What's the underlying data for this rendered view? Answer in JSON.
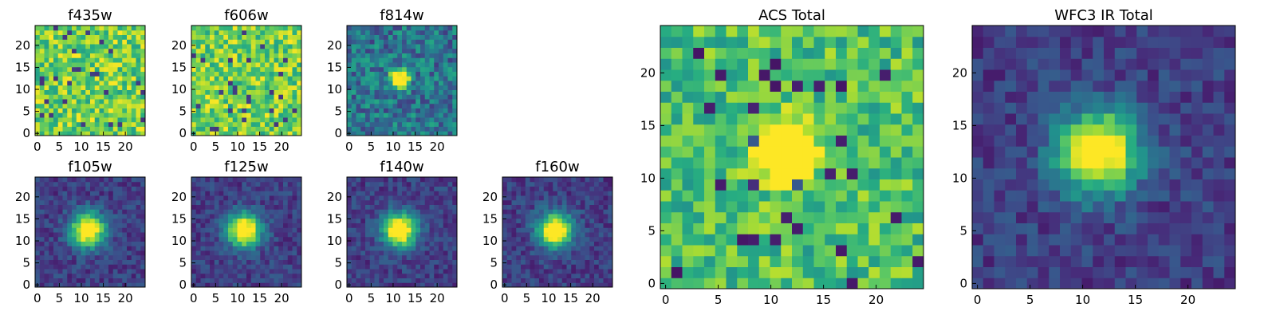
{
  "chart_data": [
    {
      "type": "heatmap",
      "title": "f435w",
      "colormap": "viridis",
      "xlim": [
        0,
        24
      ],
      "ylim": [
        0,
        24
      ],
      "xticks": [
        "0",
        "5",
        "10",
        "15",
        "20"
      ],
      "yticks": [
        "0",
        "5",
        "10",
        "15",
        "20"
      ],
      "grid_size": [
        24,
        24
      ],
      "source": null,
      "noise": "high-uniform"
    },
    {
      "type": "heatmap",
      "title": "f606w",
      "colormap": "viridis",
      "xlim": [
        0,
        24
      ],
      "ylim": [
        0,
        24
      ],
      "xticks": [
        "0",
        "5",
        "10",
        "15",
        "20"
      ],
      "yticks": [
        "0",
        "5",
        "10",
        "15",
        "20"
      ],
      "grid_size": [
        24,
        24
      ],
      "source": null,
      "noise": "high-uniform"
    },
    {
      "type": "heatmap",
      "title": "f814w",
      "colormap": "viridis",
      "xlim": [
        0,
        24
      ],
      "ylim": [
        0,
        24
      ],
      "xticks": [
        "0",
        "5",
        "10",
        "15",
        "20"
      ],
      "yticks": [
        "0",
        "5",
        "10",
        "15",
        "20"
      ],
      "grid_size": [
        24,
        24
      ],
      "source": {
        "x": 11.5,
        "y": 12.5,
        "peak": 1.0
      },
      "noise": "moderate"
    },
    {
      "type": "heatmap",
      "title": "f105w",
      "colormap": "viridis",
      "xlim": [
        0,
        24
      ],
      "ylim": [
        0,
        24
      ],
      "xticks": [
        "0",
        "5",
        "10",
        "15",
        "20"
      ],
      "yticks": [
        "0",
        "5",
        "10",
        "15",
        "20"
      ],
      "grid_size": [
        24,
        24
      ],
      "source": {
        "x": 11.5,
        "y": 12.5,
        "peak": 1.0
      },
      "noise": "low"
    },
    {
      "type": "heatmap",
      "title": "f125w",
      "colormap": "viridis",
      "xlim": [
        0,
        24
      ],
      "ylim": [
        0,
        24
      ],
      "xticks": [
        "0",
        "5",
        "10",
        "15",
        "20"
      ],
      "yticks": [
        "0",
        "5",
        "10",
        "15",
        "20"
      ],
      "grid_size": [
        24,
        24
      ],
      "source": {
        "x": 11.5,
        "y": 12.5,
        "peak": 1.0
      },
      "noise": "low"
    },
    {
      "type": "heatmap",
      "title": "f140w",
      "colormap": "viridis",
      "xlim": [
        0,
        24
      ],
      "ylim": [
        0,
        24
      ],
      "xticks": [
        "0",
        "5",
        "10",
        "15",
        "20"
      ],
      "yticks": [
        "0",
        "5",
        "10",
        "15",
        "20"
      ],
      "grid_size": [
        24,
        24
      ],
      "source": {
        "x": 11.5,
        "y": 12.5,
        "peak": 1.0
      },
      "noise": "low"
    },
    {
      "type": "heatmap",
      "title": "f160w",
      "colormap": "viridis",
      "xlim": [
        0,
        24
      ],
      "ylim": [
        0,
        24
      ],
      "xticks": [
        "0",
        "5",
        "10",
        "15",
        "20"
      ],
      "yticks": [
        "0",
        "5",
        "10",
        "15",
        "20"
      ],
      "grid_size": [
        24,
        24
      ],
      "source": {
        "x": 11.5,
        "y": 12.5,
        "peak": 1.0
      },
      "noise": "low"
    },
    {
      "type": "heatmap",
      "title": "ACS Total",
      "colormap": "viridis",
      "xlim": [
        0,
        24
      ],
      "ylim": [
        0,
        24
      ],
      "xticks": [
        "0",
        "5",
        "10",
        "15",
        "20"
      ],
      "yticks": [
        "0",
        "5",
        "10",
        "15",
        "20"
      ],
      "grid_size": [
        24,
        24
      ],
      "source": {
        "x": 11.5,
        "y": 12.5,
        "peak": 1.0
      },
      "noise": "moderate-high-base"
    },
    {
      "type": "heatmap",
      "title": "WFC3 IR Total",
      "colormap": "viridis",
      "xlim": [
        0,
        24
      ],
      "ylim": [
        0,
        24
      ],
      "xticks": [
        "0",
        "5",
        "10",
        "15",
        "20"
      ],
      "yticks": [
        "0",
        "5",
        "10",
        "15",
        "20"
      ],
      "grid_size": [
        24,
        24
      ],
      "source": {
        "x": 11.5,
        "y": 12.5,
        "peak": 1.0
      },
      "noise": "low"
    }
  ]
}
